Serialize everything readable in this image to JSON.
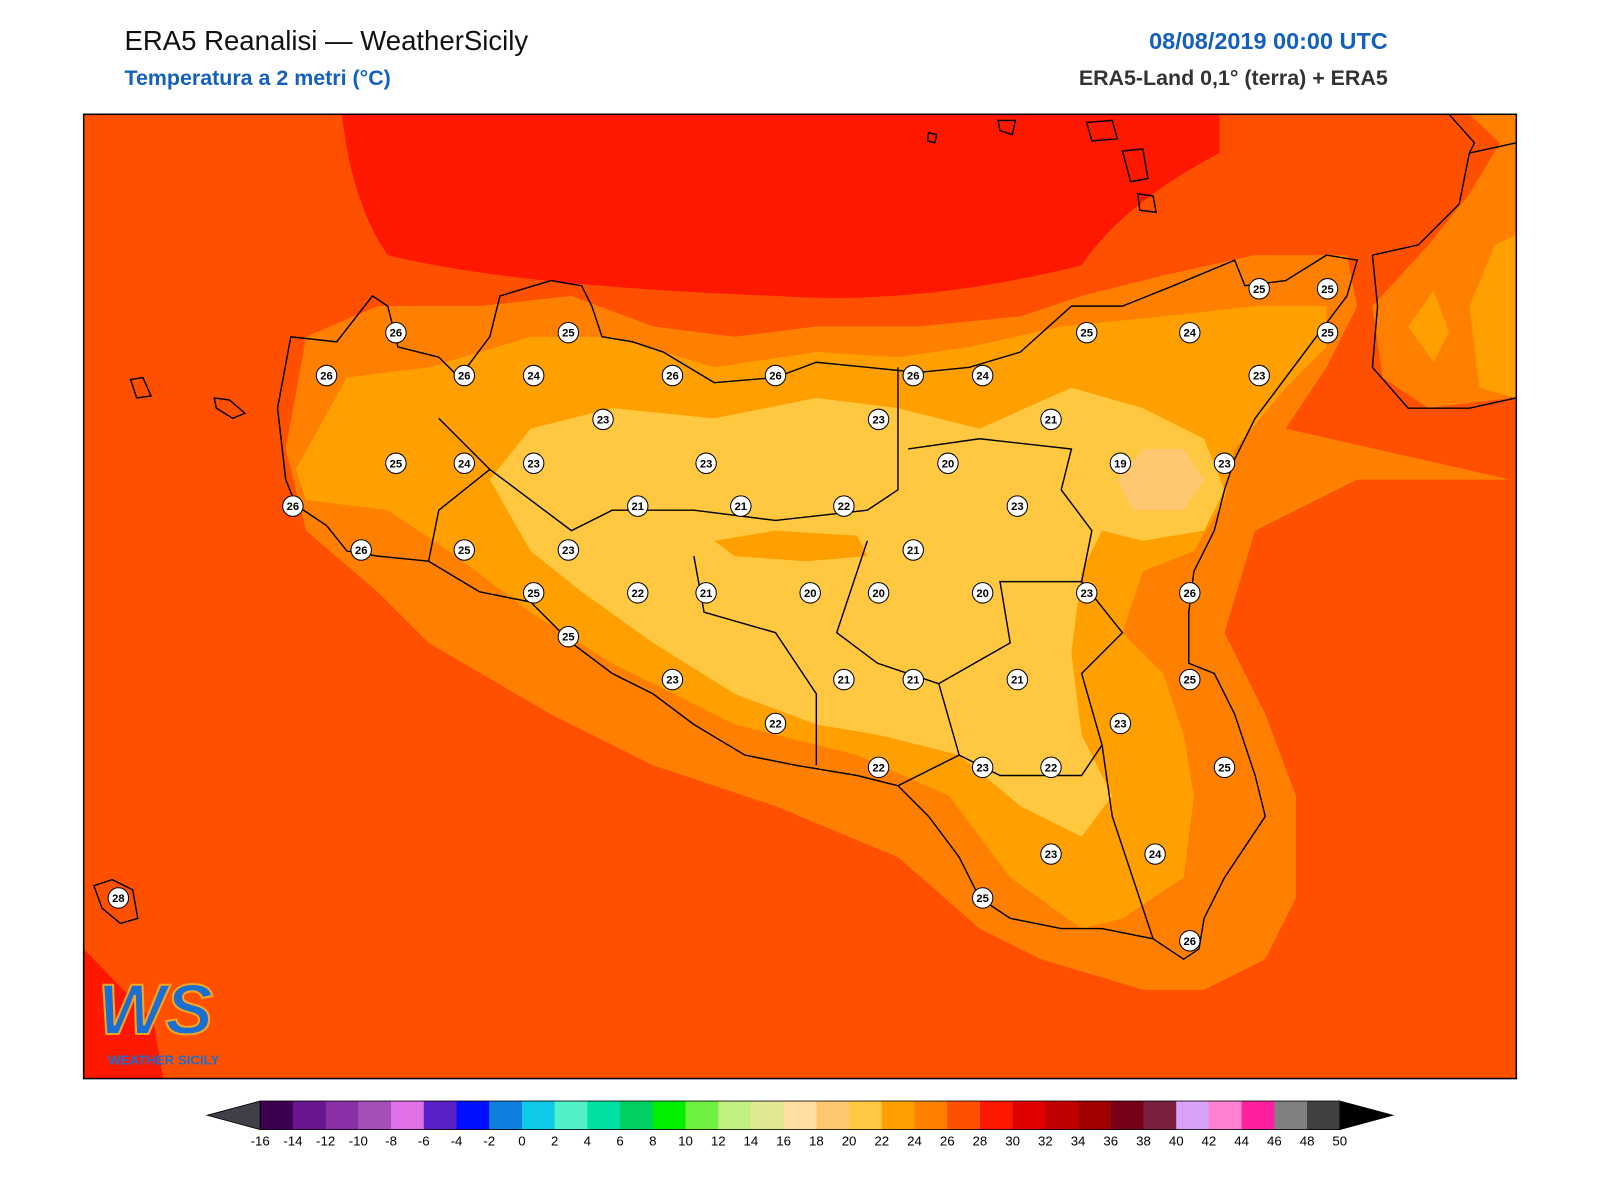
{
  "header": {
    "title": "ERA5 Reanalisi — WeatherSicily",
    "subtitle": "Temperatura a 2 metri (°C)",
    "date": "08/08/2019 00:00 UTC",
    "source": "ERA5-Land 0,1° (terra) + ERA5"
  },
  "stations": [
    26,
    25,
    26,
    26,
    24,
    26,
    26,
    26,
    24,
    25,
    24,
    25,
    25,
    25,
    23,
    23,
    23,
    21,
    25,
    24,
    23,
    23,
    20,
    19,
    23,
    26,
    21,
    21,
    22,
    23,
    26,
    25,
    23,
    21,
    25,
    22,
    21,
    20,
    20,
    20,
    23,
    26,
    25,
    23,
    21,
    21,
    21,
    25,
    23,
    22,
    22,
    23,
    22,
    25,
    23,
    24,
    25,
    26,
    28
  ],
  "colorbar": {
    "ticks": [
      -16,
      -14,
      -12,
      -10,
      -8,
      -6,
      -4,
      -2,
      0,
      2,
      4,
      6,
      8,
      10,
      12,
      14,
      16,
      18,
      20,
      22,
      24,
      26,
      28,
      30,
      32,
      34,
      36,
      38,
      40,
      42,
      44,
      46,
      48,
      50
    ],
    "colors": [
      "#3d0050",
      "#6a1590",
      "#8a2fa5",
      "#a450b8",
      "#e070e8",
      "#5a20c8",
      "#0010ff",
      "#1080e0",
      "#10c8e8",
      "#50f0c8",
      "#00e0a0",
      "#00d060",
      "#00f000",
      "#70f040",
      "#c0f080",
      "#e0e890",
      "#ffe0a0",
      "#ffc870",
      "#ffc840",
      "#ffa000",
      "#ff8000",
      "#ff5000",
      "#ff1800",
      "#e00000",
      "#c00000",
      "#a00000",
      "#780018",
      "#7a2040",
      "#d8a0f8",
      "#ff80d0",
      "#ff20a0",
      "#808080",
      "#404040"
    ],
    "under_color": "#404048",
    "over_color": "#000000"
  },
  "logo": {
    "mark": "WS",
    "text": "WEATHER SICILY"
  }
}
